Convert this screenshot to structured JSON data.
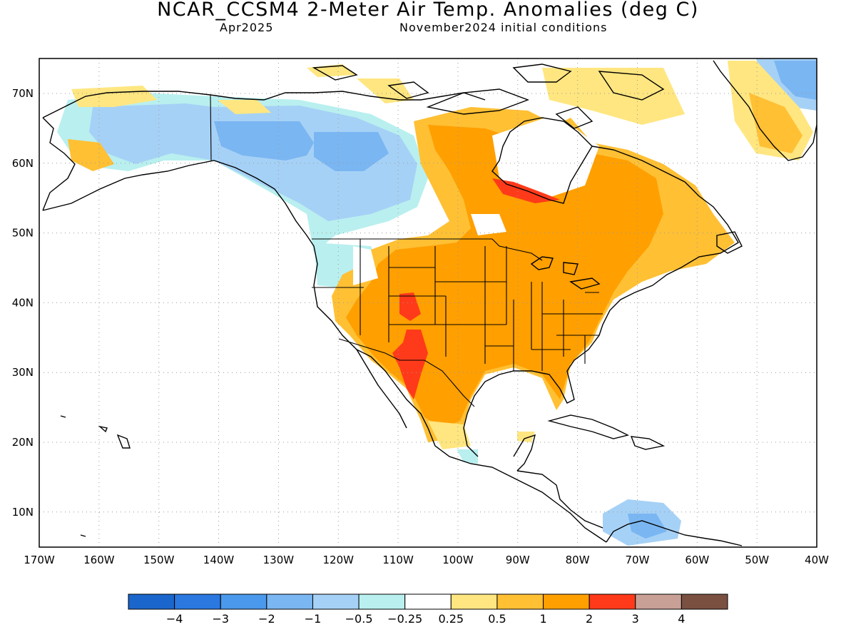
{
  "header": {
    "title": "NCAR_CCSM4 2-Meter Air Temp. Anomalies (deg C)",
    "valid_month": "Apr2025",
    "initial_conditions": "November2024 initial conditions"
  },
  "map": {
    "lon_labels": [
      "170W",
      "160W",
      "150W",
      "140W",
      "130W",
      "120W",
      "110W",
      "100W",
      "90W",
      "80W",
      "70W",
      "60W",
      "50W",
      "40W"
    ],
    "lat_labels": [
      "70N",
      "60N",
      "50N",
      "40N",
      "30N",
      "20N",
      "10N"
    ],
    "grid": "dotted"
  },
  "colorbar": {
    "colors": [
      "#1a66cc",
      "#2a78e0",
      "#4a99ec",
      "#7ab6f2",
      "#a6d1f6",
      "#b9efef",
      "#ffffff",
      "#ffe680",
      "#ffc034",
      "#ff9f00",
      "#ff3a1a",
      "#c8a096",
      "#7a5040"
    ],
    "labels": [
      "−4",
      "−3",
      "−2",
      "−1",
      "−0.5",
      "−0.25",
      "0.25",
      "0.5",
      "1",
      "2",
      "3",
      "4"
    ]
  },
  "colors": {
    "land_outline": "#000000",
    "frame": "#000000"
  }
}
